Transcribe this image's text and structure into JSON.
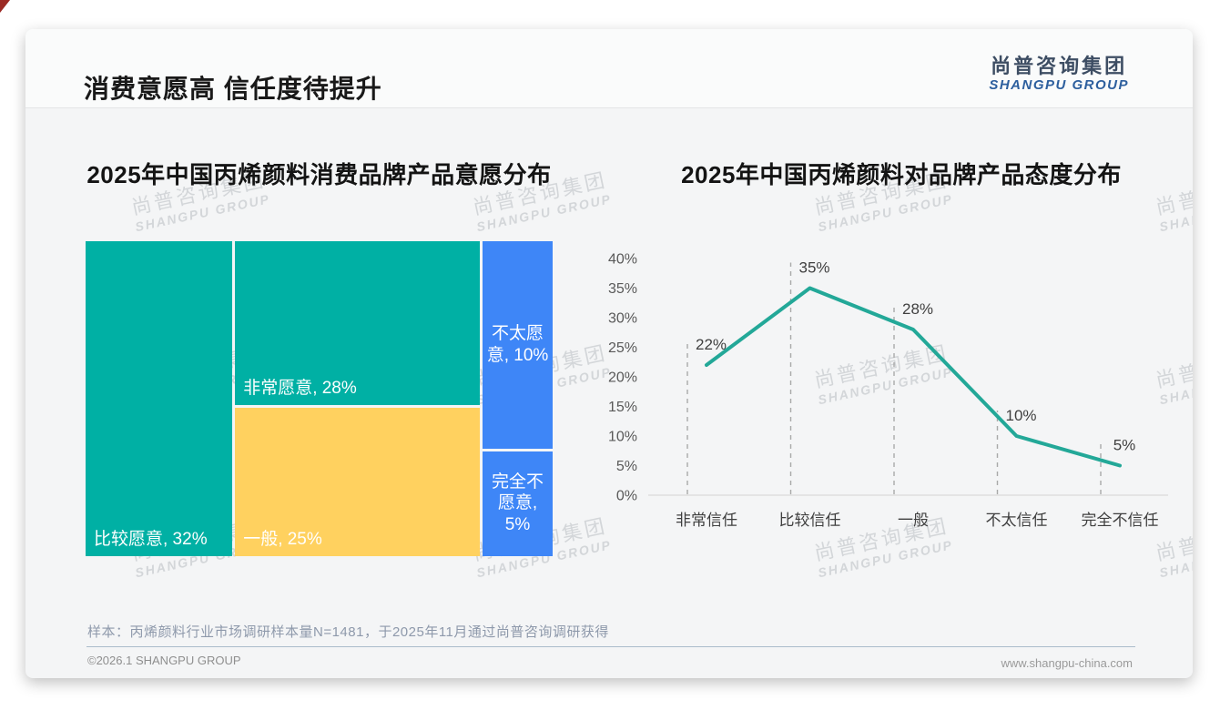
{
  "header": {
    "title": "消费意愿高 信任度待提升"
  },
  "logo": {
    "cn": "尚普咨询集团",
    "en": "SHANGPU GROUP"
  },
  "watermark": {
    "line1": "尚普咨询集团",
    "line2": "SHANGPU GROUP"
  },
  "chart_data": [
    {
      "type": "treemap",
      "title": "2025年中国丙烯颜料消费品牌产品意愿分布",
      "unit": "%",
      "items": [
        {
          "name": "非常愿意",
          "value": 28,
          "display": "非常愿意, 28%",
          "color": "#00b0a4"
        },
        {
          "name": "比较愿意",
          "value": 32,
          "display": "比较愿意, 32%",
          "color": "#00b0a4"
        },
        {
          "name": "一般",
          "value": 25,
          "display": "一般, 25%",
          "color": "#ffd15f"
        },
        {
          "name": "不太愿意",
          "value": 10,
          "display": "不太愿\n意, 10%",
          "color": "#3e86f7"
        },
        {
          "name": "完全不愿意",
          "value": 5,
          "display": "完全不\n愿意,\n5%",
          "color": "#3e86f7"
        }
      ]
    },
    {
      "type": "line",
      "title": "2025年中国丙烯颜料对品牌产品态度分布",
      "categories": [
        "非常信任",
        "比较信任",
        "一般",
        "不太信任",
        "完全不信任"
      ],
      "values": [
        22,
        35,
        28,
        10,
        5
      ],
      "value_labels": [
        "22%",
        "35%",
        "28%",
        "10%",
        "5%"
      ],
      "yticks": [
        "0%",
        "5%",
        "10%",
        "15%",
        "20%",
        "25%",
        "30%",
        "35%",
        "40%"
      ],
      "ylim": [
        0,
        40
      ],
      "grid": "dashed-vertical-guides",
      "legend": "none",
      "line_color": "#23a898"
    }
  ],
  "footnote": {
    "text": "样本：丙烯颜料行业市场调研样本量N=1481，于2025年11月通过尚普咨询调研获得"
  },
  "footer": {
    "left": "©2026.1 SHANGPU GROUP",
    "right": "www.shangpu-china.com"
  },
  "colors": {
    "teal": "#00b0a4",
    "yellow": "#ffd15f",
    "blue": "#3e86f7",
    "line": "#23a898",
    "axis_label": "#595959",
    "data_label": "#3f3f3f",
    "logo_blue": "#2d5f9e"
  }
}
